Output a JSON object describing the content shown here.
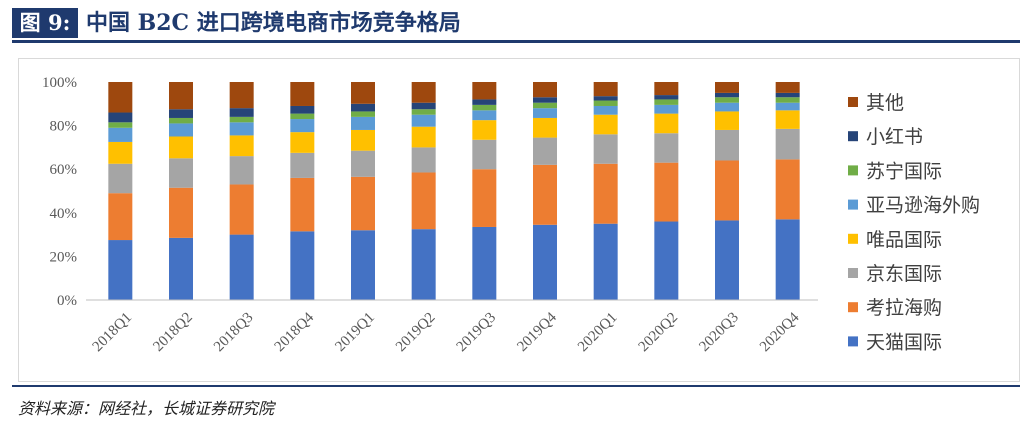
{
  "header": {
    "figure_label": "图 9:",
    "title": "中国 B2C 进口跨境电商市场竞争格局"
  },
  "source": "资料来源：网经社，长城证券研究院",
  "chart_data": {
    "type": "bar",
    "stacked": true,
    "title": "",
    "xlabel": "",
    "ylabel": "",
    "ylim": [
      0,
      100
    ],
    "yticks": [
      "0%",
      "20%",
      "40%",
      "60%",
      "80%",
      "100%"
    ],
    "categories": [
      "2018Q1",
      "2018Q2",
      "2018Q3",
      "2018Q4",
      "2019Q1",
      "2019Q2",
      "2019Q3",
      "2019Q4",
      "2020Q1",
      "2020Q2",
      "2020Q3",
      "2020Q4"
    ],
    "legend_position": "right",
    "grid": false,
    "series": [
      {
        "name": "天猫国际",
        "color": "#4472c4",
        "values": [
          27.5,
          28.5,
          30.0,
          31.5,
          32.0,
          32.5,
          33.5,
          34.5,
          35.0,
          36.0,
          36.5,
          37.0
        ]
      },
      {
        "name": "考拉海购",
        "color": "#ed7d31",
        "values": [
          21.5,
          23.0,
          23.0,
          24.5,
          24.5,
          26.0,
          26.5,
          27.5,
          27.5,
          27.0,
          27.5,
          27.5
        ]
      },
      {
        "name": "京东国际",
        "color": "#a5a5a5",
        "values": [
          13.5,
          13.5,
          13.0,
          11.5,
          12.0,
          11.5,
          13.5,
          12.5,
          13.5,
          13.5,
          14.0,
          14.0
        ]
      },
      {
        "name": "唯品国际",
        "color": "#ffc000",
        "values": [
          10.0,
          10.0,
          9.5,
          9.5,
          9.5,
          9.5,
          9.0,
          9.0,
          9.0,
          9.0,
          8.5,
          8.5
        ]
      },
      {
        "name": "亚马逊海外购",
        "color": "#5b9bd5",
        "values": [
          6.5,
          6.0,
          6.0,
          6.0,
          6.0,
          5.5,
          4.5,
          4.5,
          4.0,
          4.0,
          4.0,
          3.5
        ]
      },
      {
        "name": "苏宁国际",
        "color": "#70ad47",
        "values": [
          2.5,
          2.5,
          2.5,
          2.5,
          2.5,
          2.5,
          2.5,
          2.5,
          2.5,
          2.5,
          2.5,
          2.5
        ]
      },
      {
        "name": "小红书",
        "color": "#264478",
        "values": [
          4.5,
          4.0,
          4.0,
          3.5,
          3.5,
          3.0,
          2.5,
          2.5,
          2.0,
          2.0,
          2.0,
          2.0
        ]
      },
      {
        "name": "其他",
        "color": "#9e480e",
        "values": [
          14.0,
          12.5,
          12.0,
          11.0,
          10.0,
          9.5,
          8.0,
          7.0,
          6.5,
          6.0,
          5.0,
          5.0
        ]
      }
    ]
  }
}
